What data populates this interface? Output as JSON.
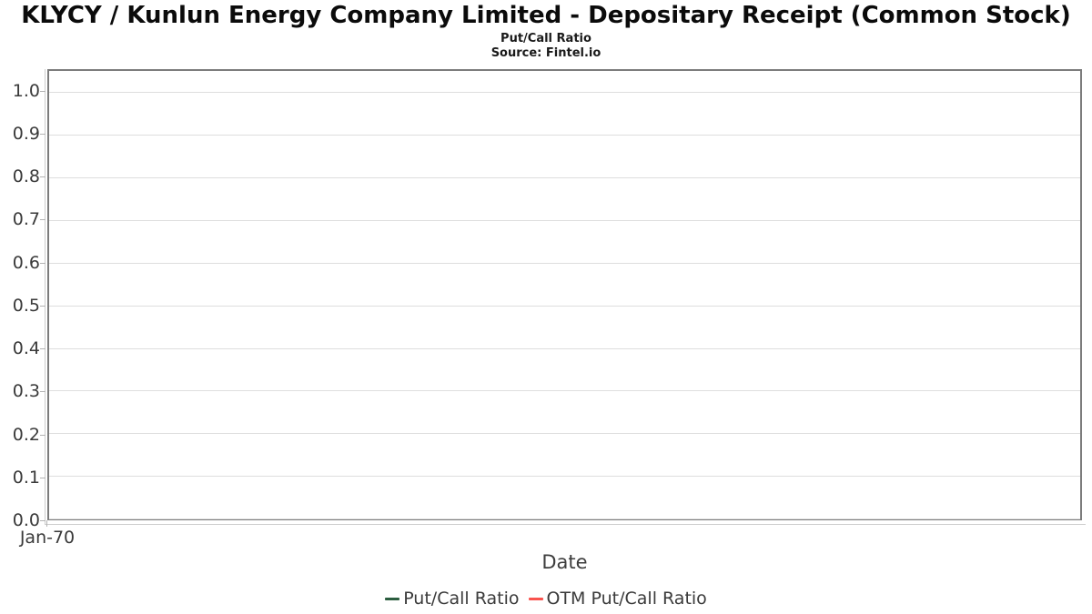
{
  "header": {
    "title": "KLYCY / Kunlun Energy Company Limited - Depositary Receipt (Common Stock)",
    "subtitle": "Put/Call Ratio",
    "source": "Source: Fintel.io"
  },
  "chart_data": {
    "type": "line",
    "title": "Put/Call Ratio",
    "xlabel": "Date",
    "ylabel": "",
    "ylim": [
      0,
      1.05
    ],
    "grid": true,
    "legend_position": "bottom",
    "ytick_values": [
      1.0,
      0.9,
      0.8,
      0.7,
      0.6,
      0.5,
      0.4,
      0.3,
      0.2,
      0.1,
      0.0
    ],
    "ytick_labels": [
      "1.0",
      "0.9",
      "0.8",
      "0.7",
      "0.6",
      "0.5",
      "0.4",
      "0.3",
      "0.2",
      "0.1",
      "0.0"
    ],
    "xtick_labels": [
      "Jan-70"
    ],
    "series": [
      {
        "name": "Put/Call Ratio",
        "color": "#2b5d3f",
        "x": [],
        "values": []
      },
      {
        "name": "OTM Put/Call Ratio",
        "color": "#f9534e",
        "x": [],
        "values": []
      }
    ]
  }
}
